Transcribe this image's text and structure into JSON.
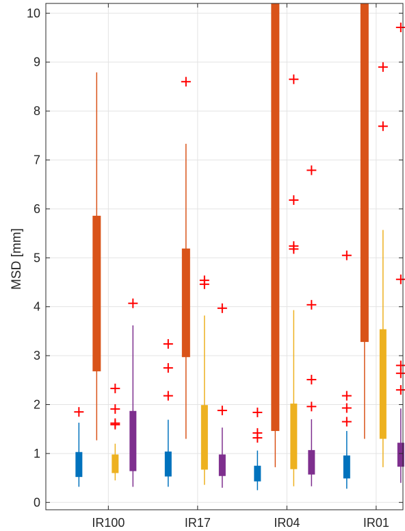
{
  "chart_data": {
    "type": "box",
    "title": "",
    "xlabel": "",
    "ylabel": "MSD [mm]",
    "ylim": [
      -0.15,
      10.2
    ],
    "yticks": [
      0,
      1,
      2,
      3,
      4,
      5,
      6,
      7,
      8,
      9,
      10
    ],
    "grid": true,
    "categories": [
      "IR100",
      "IR17",
      "IR04",
      "IR01"
    ],
    "series": [
      {
        "color": "#0072BD",
        "boxes": [
          {
            "lower_whisker": 0.32,
            "q1": 0.52,
            "q3": 1.03,
            "upper_whisker": 1.63,
            "outliers": [
              1.85
            ]
          },
          {
            "lower_whisker": 0.32,
            "q1": 0.53,
            "q3": 1.04,
            "upper_whisker": 1.69,
            "outliers": [
              3.24,
              2.75,
              2.18
            ]
          },
          {
            "lower_whisker": 0.25,
            "q1": 0.43,
            "q3": 0.75,
            "upper_whisker": 1.06,
            "outliers": [
              1.84,
              1.42,
              1.32
            ]
          },
          {
            "lower_whisker": 0.28,
            "q1": 0.49,
            "q3": 0.96,
            "upper_whisker": 1.46,
            "outliers": [
              5.05,
              2.18,
              1.93,
              1.65
            ]
          }
        ]
      },
      {
        "color": "#D95319",
        "boxes": [
          {
            "lower_whisker": 1.27,
            "q1": 2.68,
            "q3": 5.86,
            "upper_whisker": 8.79,
            "outliers": []
          },
          {
            "lower_whisker": 1.3,
            "q1": 2.97,
            "q3": 5.19,
            "upper_whisker": 7.33,
            "outliers": [
              8.6
            ]
          },
          {
            "lower_whisker": 0.72,
            "q1": 1.46,
            "q3": 10.2,
            "upper_whisker": 10.2,
            "outliers": []
          },
          {
            "lower_whisker": 1.3,
            "q1": 3.28,
            "q3": 10.2,
            "upper_whisker": 10.2,
            "outliers": []
          }
        ]
      },
      {
        "color": "#EDB120",
        "boxes": [
          {
            "lower_whisker": 0.45,
            "q1": 0.6,
            "q3": 0.98,
            "upper_whisker": 1.2,
            "outliers": [
              2.33,
              1.91,
              1.62,
              1.59
            ]
          },
          {
            "lower_whisker": 0.36,
            "q1": 0.67,
            "q3": 1.99,
            "upper_whisker": 3.82,
            "outliers": [
              4.54,
              4.46
            ]
          },
          {
            "lower_whisker": 0.33,
            "q1": 0.68,
            "q3": 2.02,
            "upper_whisker": 3.93,
            "outliers": [
              8.65,
              6.18,
              5.24,
              5.18
            ]
          },
          {
            "lower_whisker": 0.72,
            "q1": 1.3,
            "q3": 3.54,
            "upper_whisker": 5.57,
            "outliers": [
              8.9,
              7.69
            ]
          }
        ]
      },
      {
        "color": "#7E2F8E",
        "boxes": [
          {
            "lower_whisker": 0.32,
            "q1": 0.64,
            "q3": 1.87,
            "upper_whisker": 3.62,
            "outliers": [
              4.07
            ]
          },
          {
            "lower_whisker": 0.3,
            "q1": 0.54,
            "q3": 0.98,
            "upper_whisker": 1.53,
            "outliers": [
              3.97,
              1.88
            ]
          },
          {
            "lower_whisker": 0.33,
            "q1": 0.57,
            "q3": 1.07,
            "upper_whisker": 1.7,
            "outliers": [
              6.79,
              4.04,
              2.51,
              1.96
            ]
          },
          {
            "lower_whisker": 0.4,
            "q1": 0.73,
            "q3": 1.22,
            "upper_whisker": 1.92,
            "outliers": [
              9.71,
              4.56,
              2.8,
              2.64,
              2.3
            ]
          }
        ]
      }
    ]
  }
}
